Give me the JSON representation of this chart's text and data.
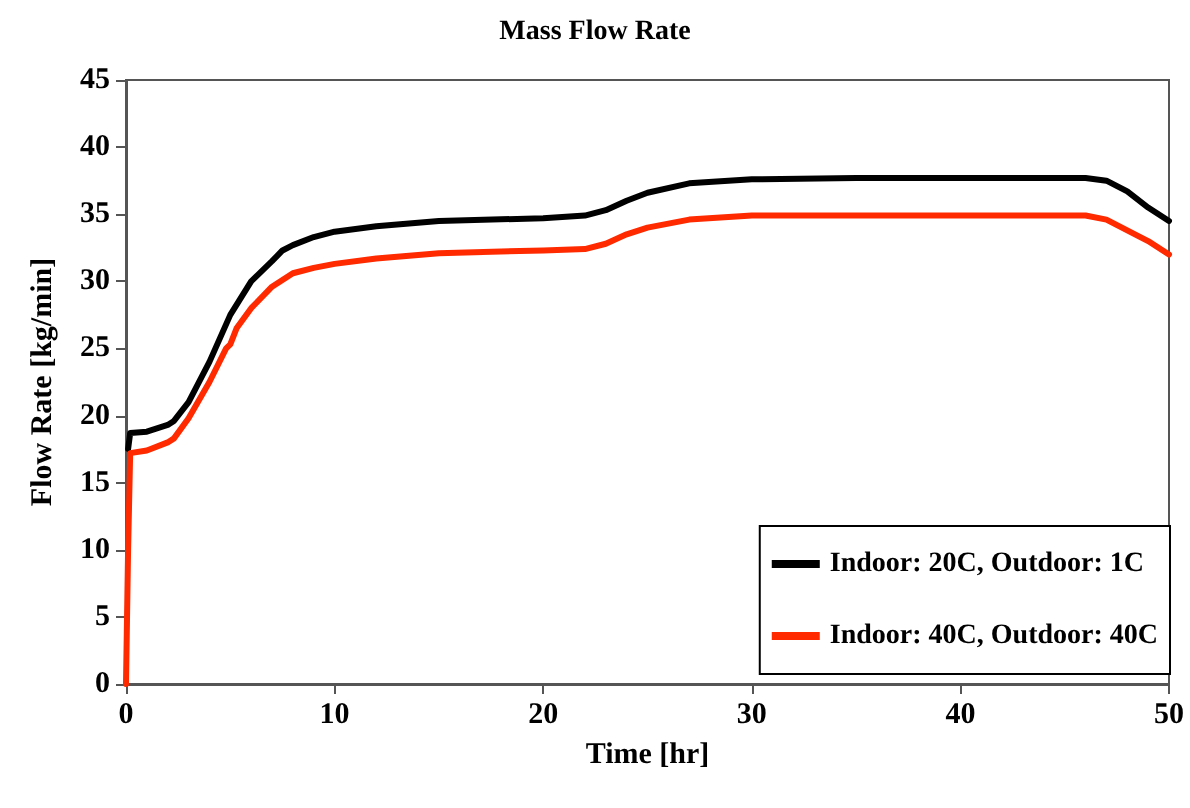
{
  "chart_data": {
    "type": "line",
    "title": "Mass Flow Rate",
    "xlabel": "Time [hr]",
    "ylabel": "Flow Rate [kg/min]",
    "xlim": [
      0,
      50
    ],
    "xticks": [
      0,
      10,
      20,
      30,
      40,
      50
    ],
    "ylim": [
      0,
      45
    ],
    "yticks": [
      0,
      5,
      10,
      15,
      20,
      25,
      30,
      35,
      40,
      45
    ],
    "grid": false,
    "legend": "bottom right",
    "marker": "none",
    "line_style": "solid",
    "series": [
      {
        "name": "Indoor: 20C, Outdoor: 1C",
        "color": "#000000",
        "x": [
          0.1,
          0.2,
          1,
          2,
          2.3,
          3,
          4,
          5,
          6,
          7,
          7.5,
          8,
          9,
          10,
          12,
          15,
          20,
          22,
          23,
          24,
          25,
          27,
          30,
          35,
          40,
          46,
          47,
          48,
          49,
          50
        ],
        "values": [
          17.5,
          18.7,
          18.8,
          19.3,
          19.6,
          21,
          24,
          27.5,
          30,
          31.5,
          32.3,
          32.7,
          33.3,
          33.7,
          34.1,
          34.5,
          34.7,
          34.9,
          35.3,
          36,
          36.6,
          37.3,
          37.6,
          37.7,
          37.7,
          37.7,
          37.5,
          36.7,
          35.5,
          34.5
        ]
      },
      {
        "name": "Indoor: 40C, Outdoor: 40C",
        "color": "#ff2a00",
        "x": [
          0,
          0.1,
          0.2,
          1,
          2,
          2.3,
          3,
          4,
          4.8,
          5,
          5.3,
          6,
          7,
          7.5,
          8,
          9,
          10,
          12,
          15,
          20,
          22,
          23,
          24,
          25,
          27,
          30,
          40,
          46,
          47,
          48,
          49,
          50
        ],
        "values": [
          0,
          10,
          17.2,
          17.4,
          18,
          18.3,
          19.8,
          22.5,
          25,
          25.3,
          26.5,
          28,
          29.6,
          30.1,
          30.6,
          31,
          31.3,
          31.7,
          32.1,
          32.3,
          32.4,
          32.8,
          33.5,
          34,
          34.6,
          34.9,
          34.9,
          34.9,
          34.6,
          33.8,
          33,
          32
        ]
      }
    ]
  }
}
